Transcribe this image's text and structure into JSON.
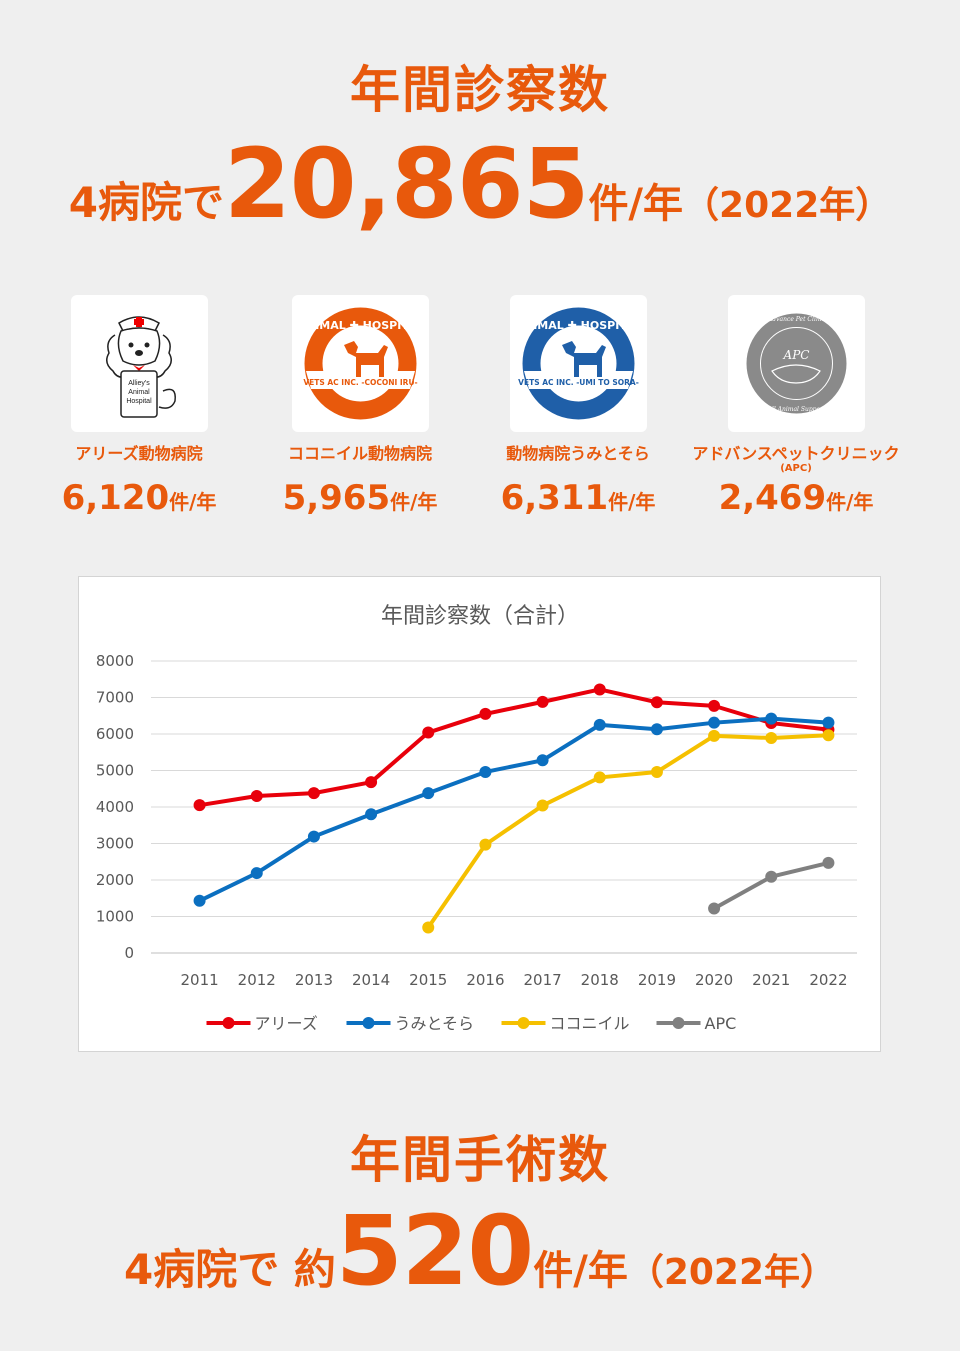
{
  "visits": {
    "heading": "年間診察数",
    "prefix": "4病院で",
    "total": "20,865",
    "unit": "件/年",
    "year": "（2022年）"
  },
  "clinics": [
    {
      "name": "アリーズ動物病院",
      "sub": "",
      "count": "6,120",
      "unit": "件/年",
      "logo_text": [
        "Alliey's",
        "Animal",
        "Hospital"
      ],
      "logo_icon": "poodle-nurse-icon"
    },
    {
      "name": "ココニイル動物病院",
      "sub": "",
      "count": "5,965",
      "unit": "件/年",
      "logo_text": [
        "ANIMAL",
        "HOSPITAL",
        "VETS AC INC.",
        "-COCONI IRU-"
      ],
      "logo_icon": "dog-badge-icon",
      "logo_color": "#e8590c"
    },
    {
      "name": "動物病院うみとそら",
      "sub": "",
      "count": "6,311",
      "unit": "件/年",
      "logo_text": [
        "ANIMAL",
        "HOSPITAL",
        "VETS AC INC.",
        "-UMI TO SORA-"
      ],
      "logo_icon": "dog-badge-icon",
      "logo_color": "#1f5fa8"
    },
    {
      "name": "アドバンスペットクリニック",
      "sub": "(APC)",
      "count": "2,469",
      "unit": "件/年",
      "logo_text": [
        "Advance Pet Clinic",
        "APC",
        "All Animal Support"
      ],
      "logo_icon": "apc-circle-icon"
    }
  ],
  "chart_data": {
    "type": "line",
    "title": "年間診察数（合計）",
    "xlabel": "",
    "ylabel": "",
    "categories": [
      "2011",
      "2012",
      "2013",
      "2014",
      "2015",
      "2016",
      "2017",
      "2018",
      "2019",
      "2020",
      "2021",
      "2022"
    ],
    "yticks": [
      "0",
      "1000",
      "2000",
      "3000",
      "4000",
      "5000",
      "6000",
      "7000",
      "8000"
    ],
    "ylim": [
      0,
      8000
    ],
    "grid": true,
    "legend_position": "bottom",
    "series": [
      {
        "name": "アリーズ",
        "color": "#e8000b",
        "values": [
          4050,
          4300,
          4380,
          4680,
          6040,
          6550,
          6880,
          7220,
          6870,
          6770,
          6300,
          6120
        ]
      },
      {
        "name": "うみとそら",
        "color": "#0b6fc0",
        "values": [
          1430,
          2190,
          3190,
          3800,
          4380,
          4960,
          5280,
          6250,
          6130,
          6310,
          6420,
          6311
        ]
      },
      {
        "name": "ココニイル",
        "color": "#f5c000",
        "values": [
          null,
          null,
          null,
          null,
          700,
          2970,
          4040,
          4810,
          4960,
          5950,
          5890,
          5965
        ]
      },
      {
        "name": "APC",
        "color": "#808080",
        "values": [
          null,
          null,
          null,
          null,
          null,
          null,
          null,
          null,
          null,
          1220,
          2090,
          2469
        ]
      }
    ]
  },
  "surgery": {
    "heading": "年間手術数",
    "prefix": "4病院で 約",
    "total": "520",
    "unit": "件/年",
    "year": "（2022年）"
  }
}
